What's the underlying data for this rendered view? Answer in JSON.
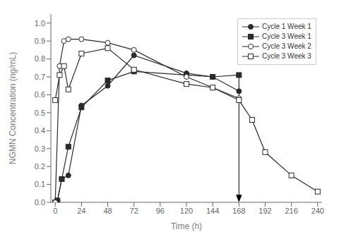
{
  "chart_data": {
    "type": "line",
    "xlabel": "Time (h)",
    "ylabel": "NGMN Concentration (ng/mL)",
    "xlim": [
      -4,
      244
    ],
    "ylim": [
      0.0,
      1.05
    ],
    "xticks": [
      0,
      24,
      48,
      72,
      96,
      120,
      144,
      168,
      192,
      216,
      240
    ],
    "yticks": [
      {
        "value": 0,
        "label": "0.0"
      },
      0.1,
      0.2,
      0.3,
      0.4,
      0.5,
      0.6,
      0.7,
      0.8,
      0.9,
      {
        "value": 1,
        "label": "1.0"
      }
    ],
    "grid": false,
    "legend": "upper right",
    "series": [
      {
        "name": "Cycle 1 Week 1",
        "color": "#2a2a2a",
        "marker": "circle",
        "line_style": "solid",
        "x": [
          0,
          2,
          6,
          12,
          24,
          48,
          72,
          120,
          144,
          168
        ],
        "values": [
          0.0,
          0.01,
          0.13,
          0.15,
          0.54,
          0.65,
          0.82,
          0.72,
          0.7,
          0.62
        ]
      },
      {
        "name": "Cycle 3 Week 1",
        "color": "#2a2a2a",
        "marker": "square",
        "line_style": "solid",
        "x": [
          0,
          2,
          6,
          12,
          24,
          48,
          72,
          120,
          144,
          168
        ],
        "values": [
          0.0,
          0.01,
          0.13,
          0.31,
          0.53,
          0.68,
          0.73,
          0.71,
          0.7,
          0.71
        ]
      },
      {
        "name": "Cycle 3 Week 2",
        "color": "#2a2a2a",
        "marker": "open_circle",
        "line_style": "solid",
        "x": [
          0,
          4,
          8,
          12,
          24,
          48,
          72,
          120,
          144,
          168
        ],
        "values": [
          0.0,
          0.76,
          0.9,
          0.91,
          0.91,
          0.89,
          0.85,
          0.7,
          0.64,
          0.58
        ]
      },
      {
        "name": "Cycle 3 Week 3",
        "color": "#2a2a2a",
        "marker": "open_square",
        "line_style": "solid",
        "x": [
          0,
          4,
          8,
          12,
          24,
          48,
          72,
          120,
          144,
          168,
          180,
          192,
          216,
          240
        ],
        "values": [
          0.57,
          0.71,
          0.76,
          0.63,
          0.83,
          0.86,
          0.74,
          0.66,
          0.64,
          0.57,
          0.46,
          0.28,
          0.15,
          0.06
        ]
      }
    ],
    "arrow": {
      "x": 168,
      "from": 0.695,
      "to": 0.005
    }
  }
}
